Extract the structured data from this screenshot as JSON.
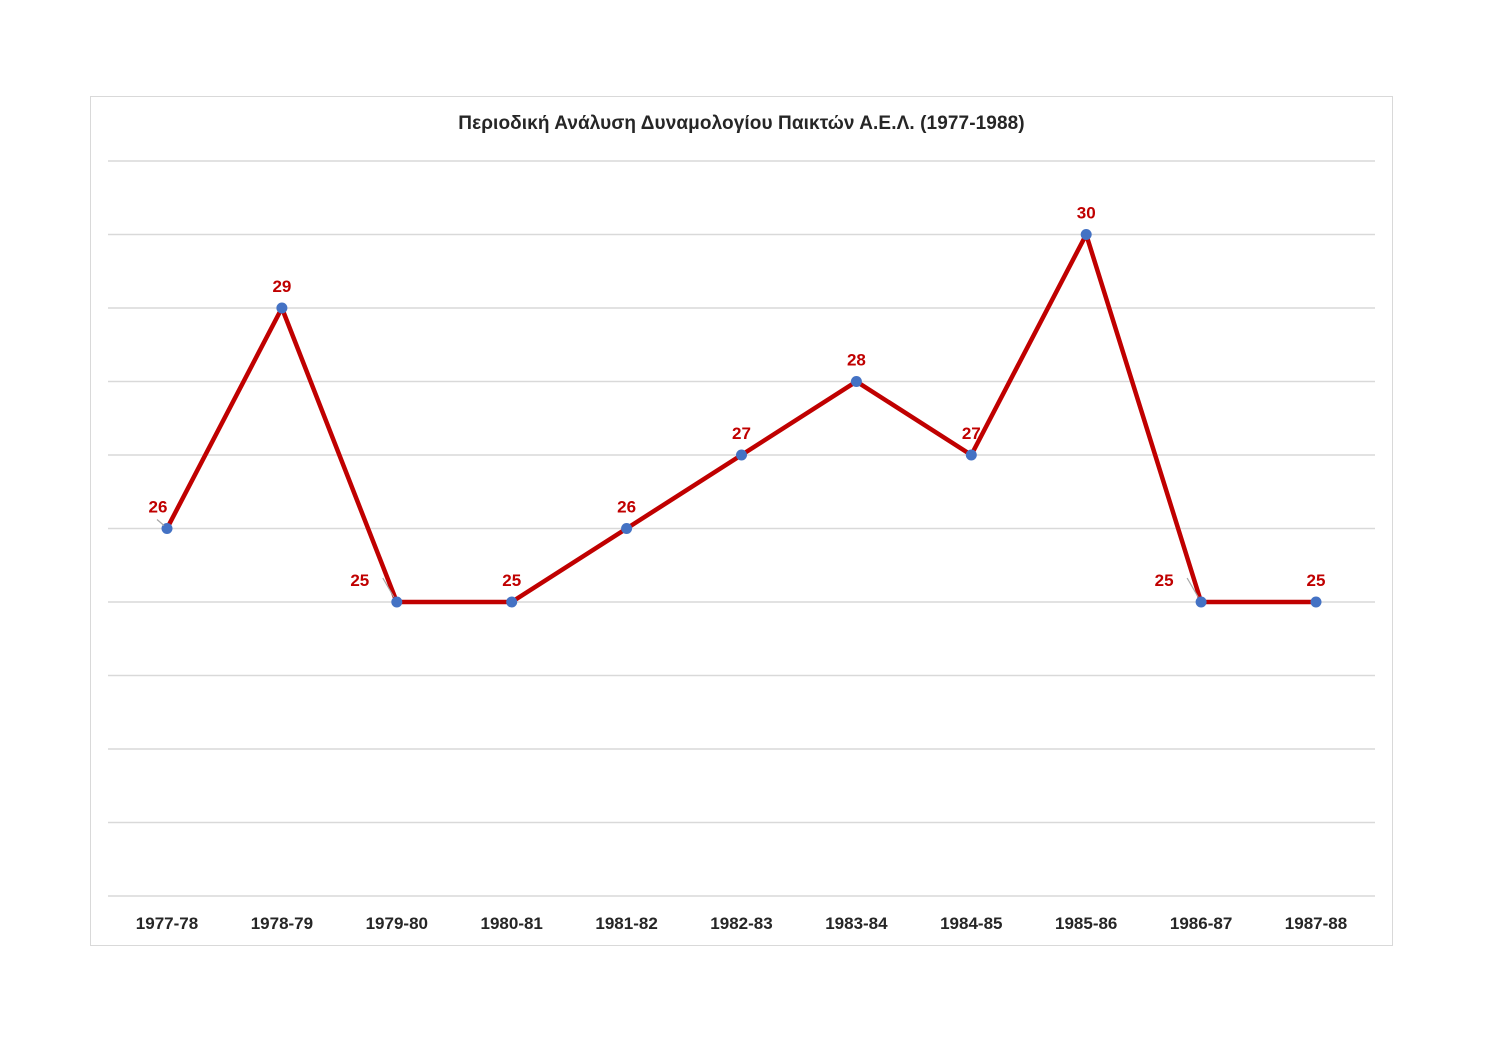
{
  "chart_data": {
    "type": "line",
    "title": "Περιοδική Ανάλυση Δυναμολογίου Παικτών Α.Ε.Λ. (1977-1988)",
    "xlabel": "",
    "ylabel": "",
    "categories": [
      "1977-78",
      "1978-79",
      "1979-80",
      "1980-81",
      "1981-82",
      "1982-83",
      "1983-84",
      "1984-85",
      "1985-86",
      "1986-87",
      "1987-88"
    ],
    "series": [
      {
        "values": [
          26,
          29,
          25,
          25,
          26,
          27,
          28,
          27,
          30,
          25,
          25
        ]
      }
    ],
    "ylim": [
      21,
      31
    ],
    "grid": true,
    "legend": "none",
    "colors": {
      "line": "#c00000",
      "marker": "#4472c4",
      "label": "#c00000",
      "grid": "#d9d9d9"
    }
  }
}
